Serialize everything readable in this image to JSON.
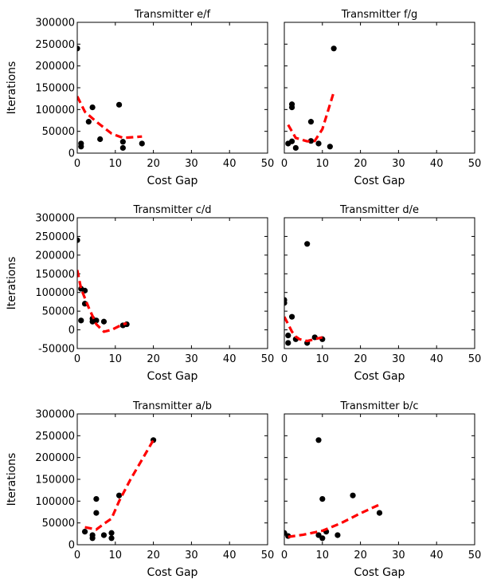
{
  "chart_data": [
    {
      "type": "scatter",
      "title": "Transmitter e/f",
      "xlabel": "Cost Gap",
      "ylabel": "Iterations",
      "xlim": [
        0,
        50
      ],
      "ylim": [
        0,
        300000
      ],
      "xticks": [
        "0",
        "10",
        "20",
        "30",
        "40",
        "50"
      ],
      "yticks": [
        "0",
        "50000",
        "100000",
        "150000",
        "200000",
        "250000",
        "300000"
      ],
      "grid": false,
      "points": {
        "x": [
          0,
          1,
          1,
          3,
          4,
          6,
          11,
          12,
          12,
          17
        ],
        "y": [
          240000,
          15000,
          22000,
          72000,
          105000,
          32000,
          111000,
          12000,
          26000,
          22000
        ]
      },
      "fit": {
        "x": [
          0,
          2,
          5,
          9,
          12,
          17
        ],
        "y": [
          130000,
          95000,
          72000,
          45000,
          35000,
          38000
        ]
      }
    },
    {
      "type": "scatter",
      "title": "Transmitter f/g",
      "xlabel": "Cost Gap",
      "ylabel": "",
      "xlim": [
        0,
        50
      ],
      "ylim": [
        0,
        300000
      ],
      "xticks": [
        "0",
        "10",
        "20",
        "30",
        "40",
        "50"
      ],
      "yticks": [],
      "grid": false,
      "points": {
        "x": [
          1,
          2,
          2,
          2,
          3,
          7,
          7,
          9,
          12,
          13
        ],
        "y": [
          22000,
          27000,
          105000,
          112000,
          12000,
          72000,
          28000,
          22000,
          15000,
          240000
        ]
      },
      "fit": {
        "x": [
          1,
          3,
          6,
          8,
          10,
          13
        ],
        "y": [
          65000,
          35000,
          27000,
          28000,
          55000,
          140000
        ]
      }
    },
    {
      "type": "scatter",
      "title": "Transmitter c/d",
      "xlabel": "Cost Gap",
      "ylabel": "Iterations",
      "xlim": [
        0,
        50
      ],
      "ylim": [
        -50000,
        300000
      ],
      "xticks": [
        "0",
        "10",
        "20",
        "30",
        "40",
        "50"
      ],
      "yticks": [
        "-50000",
        "0",
        "50000",
        "100000",
        "150000",
        "200000",
        "250000",
        "300000"
      ],
      "grid": false,
      "points": {
        "x": [
          0,
          1,
          1,
          2,
          2,
          4,
          4,
          5,
          7,
          12,
          13
        ],
        "y": [
          240000,
          110000,
          25000,
          105000,
          70000,
          30000,
          22000,
          25000,
          22000,
          12000,
          15000
        ]
      },
      "fit": {
        "x": [
          0,
          1,
          3,
          5,
          7,
          9,
          11,
          13
        ],
        "y": [
          160000,
          110000,
          60000,
          15000,
          -5000,
          0,
          10000,
          18000
        ]
      }
    },
    {
      "type": "scatter",
      "title": "Transmitter d/e",
      "xlabel": "Cost Gap",
      "ylabel": "",
      "xlim": [
        0,
        50
      ],
      "ylim": [
        -50000,
        300000
      ],
      "xticks": [
        "0",
        "10",
        "20",
        "30",
        "40",
        "50"
      ],
      "yticks": [],
      "grid": false,
      "points": {
        "x": [
          0,
          0,
          1,
          1,
          2,
          3,
          6,
          6,
          8,
          10
        ],
        "y": [
          80000,
          72000,
          -15000,
          -35000,
          35000,
          -25000,
          230000,
          -35000,
          -20000,
          -25000
        ]
      },
      "fit": {
        "x": [
          0,
          1,
          2,
          3,
          4,
          6,
          8,
          10
        ],
        "y": [
          35000,
          15000,
          -5000,
          -18000,
          -25000,
          -30000,
          -25000,
          -20000
        ]
      }
    },
    {
      "type": "scatter",
      "title": "Transmitter a/b",
      "xlabel": "Cost Gap",
      "ylabel": "Iterations",
      "xlim": [
        0,
        50
      ],
      "ylim": [
        0,
        300000
      ],
      "xticks": [
        "0",
        "10",
        "20",
        "30",
        "40",
        "50"
      ],
      "yticks": [
        "0",
        "50000",
        "100000",
        "150000",
        "200000",
        "250000",
        "300000"
      ],
      "grid": false,
      "points": {
        "x": [
          2,
          4,
          4,
          5,
          5,
          7,
          9,
          9,
          11,
          20
        ],
        "y": [
          30000,
          15000,
          22000,
          105000,
          73000,
          22000,
          15000,
          27000,
          113000,
          240000
        ]
      },
      "fit": {
        "x": [
          2,
          5,
          7,
          9,
          11,
          14,
          17,
          20
        ],
        "y": [
          40000,
          35000,
          48000,
          60000,
          100000,
          150000,
          195000,
          240000
        ]
      }
    },
    {
      "type": "scatter",
      "title": "Transmitter b/c",
      "xlabel": "Cost Gap",
      "ylabel": "",
      "xlim": [
        0,
        50
      ],
      "ylim": [
        0,
        300000
      ],
      "xticks": [
        "0",
        "10",
        "20",
        "30",
        "40",
        "50"
      ],
      "yticks": [],
      "grid": false,
      "points": {
        "x": [
          0,
          1,
          9,
          9,
          10,
          10,
          11,
          14,
          18,
          25
        ],
        "y": [
          27000,
          20000,
          240000,
          22000,
          15000,
          105000,
          30000,
          22000,
          113000,
          73000
        ]
      },
      "fit": {
        "x": [
          1,
          5,
          10,
          15,
          20,
          25
        ],
        "y": [
          18000,
          23000,
          32000,
          50000,
          72000,
          92000
        ]
      }
    }
  ],
  "colors": {
    "points": "#000000",
    "fit": "#ff0000",
    "axes": "#000000"
  }
}
